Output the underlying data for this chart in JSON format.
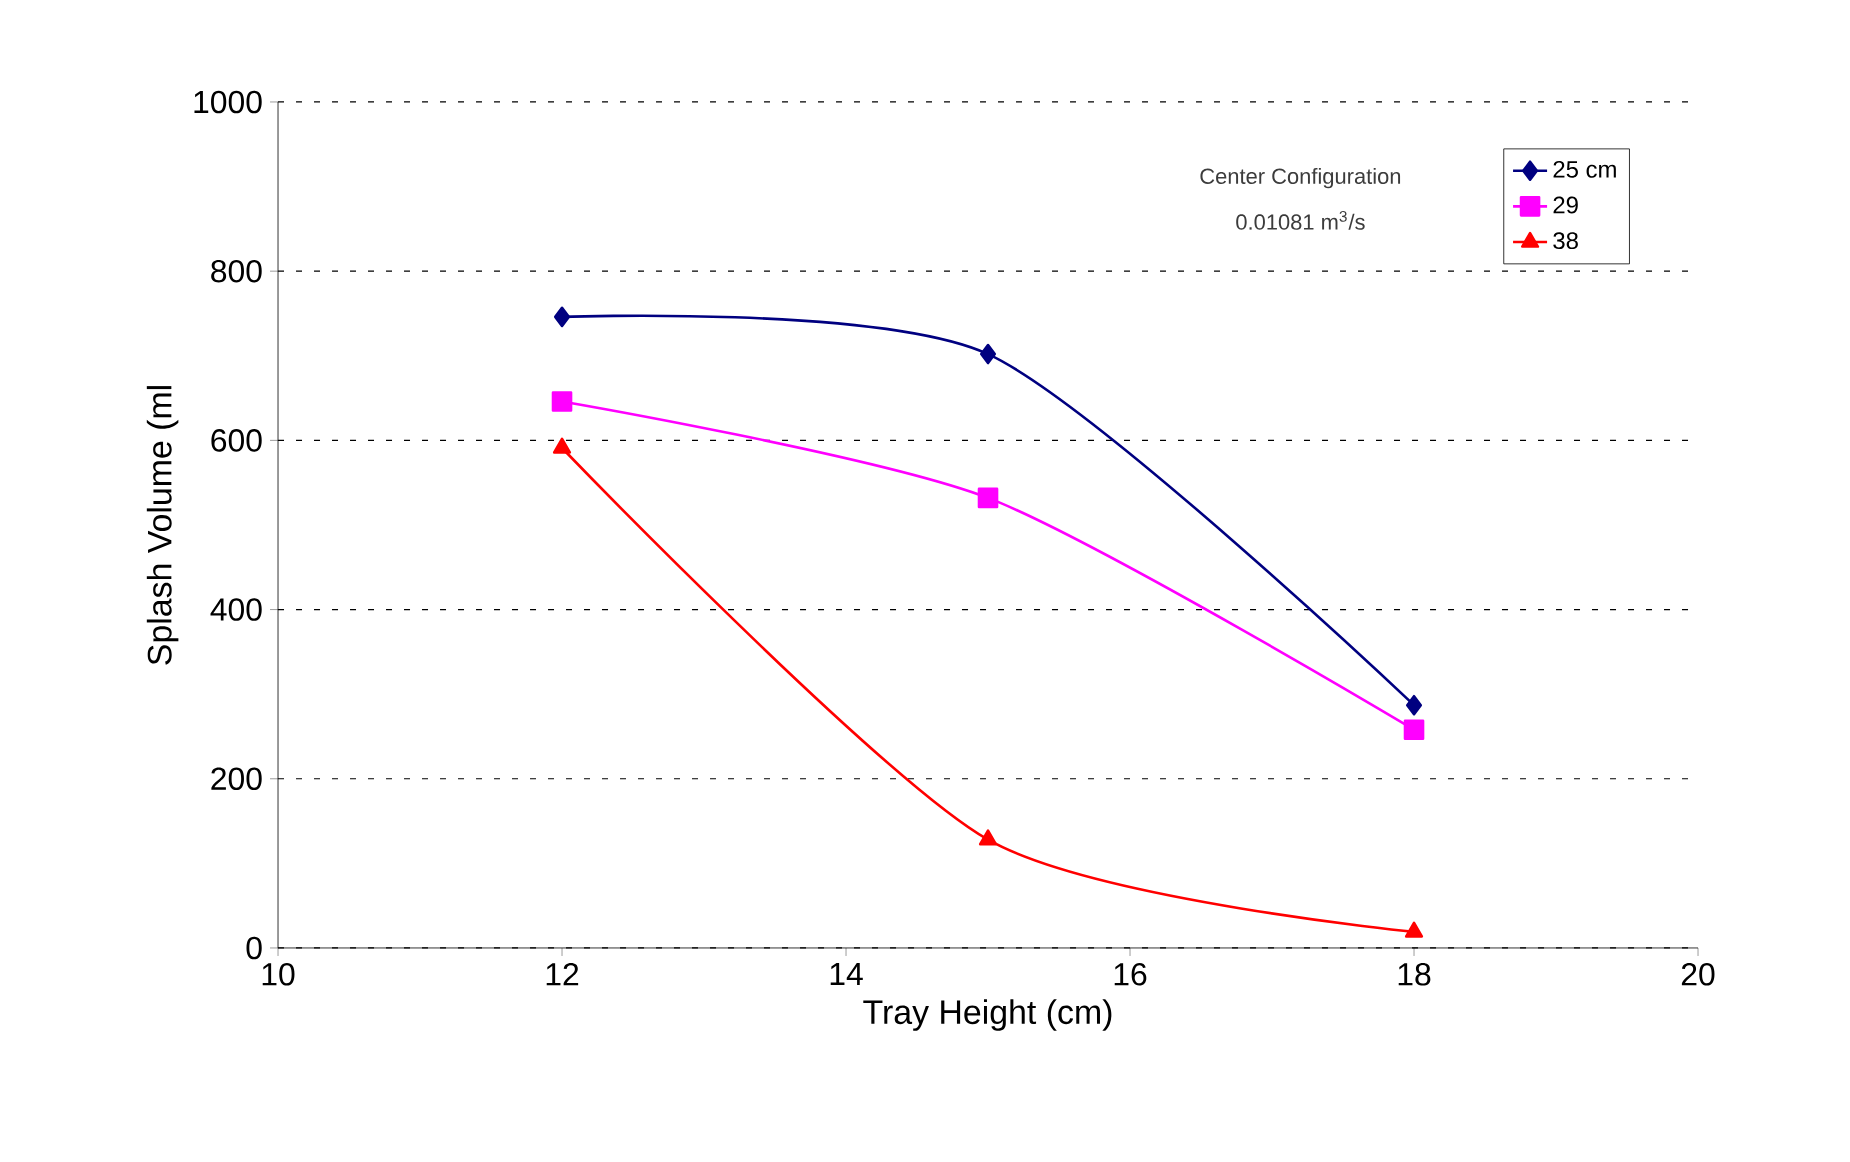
{
  "chart_data": {
    "type": "line",
    "xlabel": "Tray Height (cm)",
    "ylabel": "Splash Volume (ml",
    "annotations": [
      "Center Configuration",
      "0.01081 m$^{3}$/s"
    ],
    "x": [
      12,
      15,
      18
    ],
    "series": [
      {
        "name": "25 cm",
        "color": "#000080",
        "marker": "diamond",
        "values": [
          746,
          702,
          287
        ]
      },
      {
        "name": "29",
        "color": "#ff00ff",
        "marker": "square",
        "values": [
          646,
          532,
          258
        ]
      },
      {
        "name": "38",
        "color": "#ff0000",
        "marker": "triangle",
        "values": [
          591,
          128,
          19
        ]
      }
    ],
    "xlim": [
      10,
      20
    ],
    "xticks": [
      10,
      12,
      14,
      16,
      18,
      20
    ],
    "ylim": [
      0,
      1000
    ],
    "yticks": [
      0,
      200,
      400,
      600,
      800,
      1000
    ],
    "grid": "y",
    "legend": "top right",
    "line_style": "solid"
  }
}
